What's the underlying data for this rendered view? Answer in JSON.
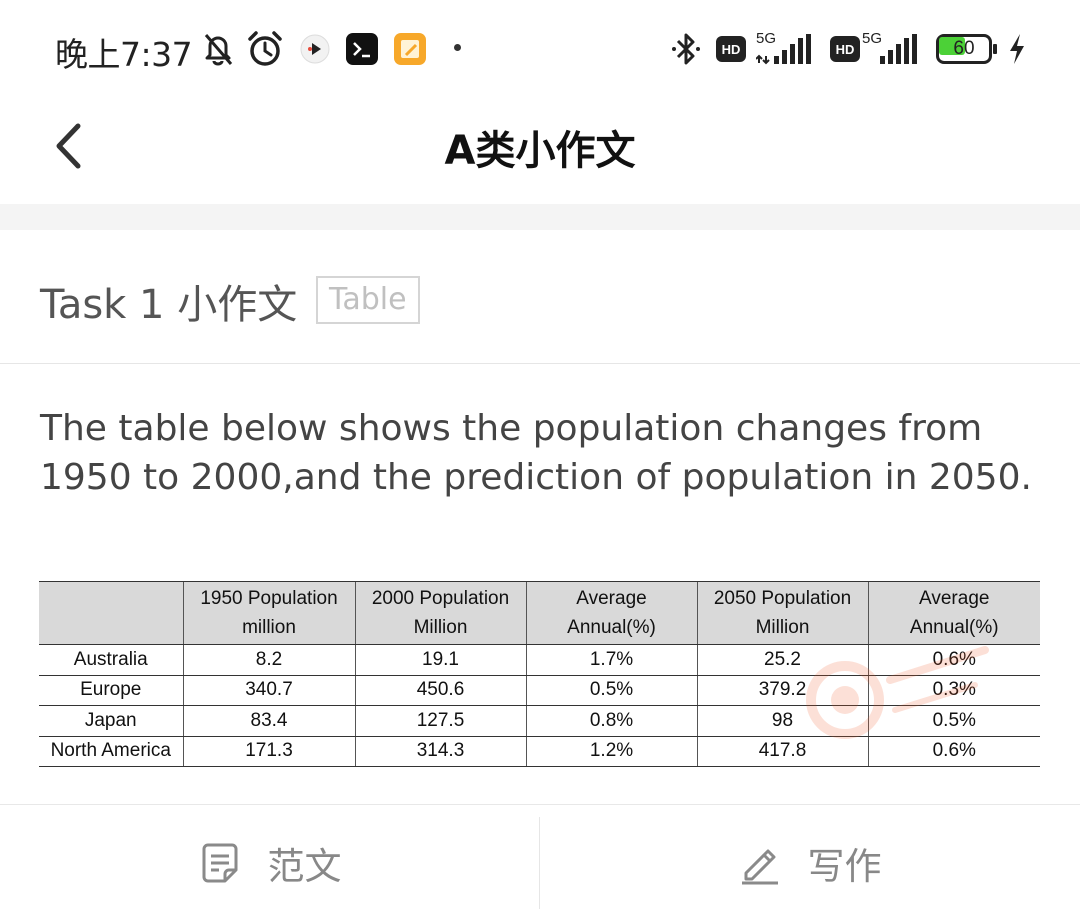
{
  "status_bar": {
    "time": "晚上7:37",
    "network_1": "5G",
    "network_2": "5G",
    "hd_1": "HD",
    "hd_2": "HD",
    "battery_level": "60",
    "battery_fraction": 0.6,
    "icons": [
      "mute-bell-icon",
      "alarm-clock-icon",
      "play-app-icon",
      "terminal-app-icon",
      "notes-app-icon",
      "bluetooth-icon",
      "signal-icon",
      "battery-icon",
      "charging-icon"
    ]
  },
  "header": {
    "title": "A类小作文",
    "back_icon": "chevron-left-icon"
  },
  "task": {
    "title": "Task 1 小作文",
    "tag": "Table"
  },
  "prompt": "The table below shows the population changes from 1950 to 2000,and the prediction of population in 2050.",
  "table": {
    "headers": [
      [
        "",
        ""
      ],
      [
        "1950 Population",
        "million"
      ],
      [
        "2000 Population",
        "Million"
      ],
      [
        "Average",
        "Annual(%)"
      ],
      [
        "2050 Population",
        "Million"
      ],
      [
        "Average",
        "Annual(%)"
      ]
    ],
    "rows": [
      [
        "Australia",
        "8.2",
        "19.1",
        "1.7%",
        "25.2",
        "0.6%"
      ],
      [
        "Europe",
        "340.7",
        "450.6",
        "0.5%",
        "379.2",
        "0.3%"
      ],
      [
        "Japan",
        "83.4",
        "127.5",
        "0.8%",
        "98",
        "0.5%"
      ],
      [
        "North America",
        "171.3",
        "314.3",
        "1.2%",
        "417.8",
        "0.6%"
      ]
    ]
  },
  "bottom_bar": {
    "left_label": "范文",
    "right_label": "写作"
  }
}
